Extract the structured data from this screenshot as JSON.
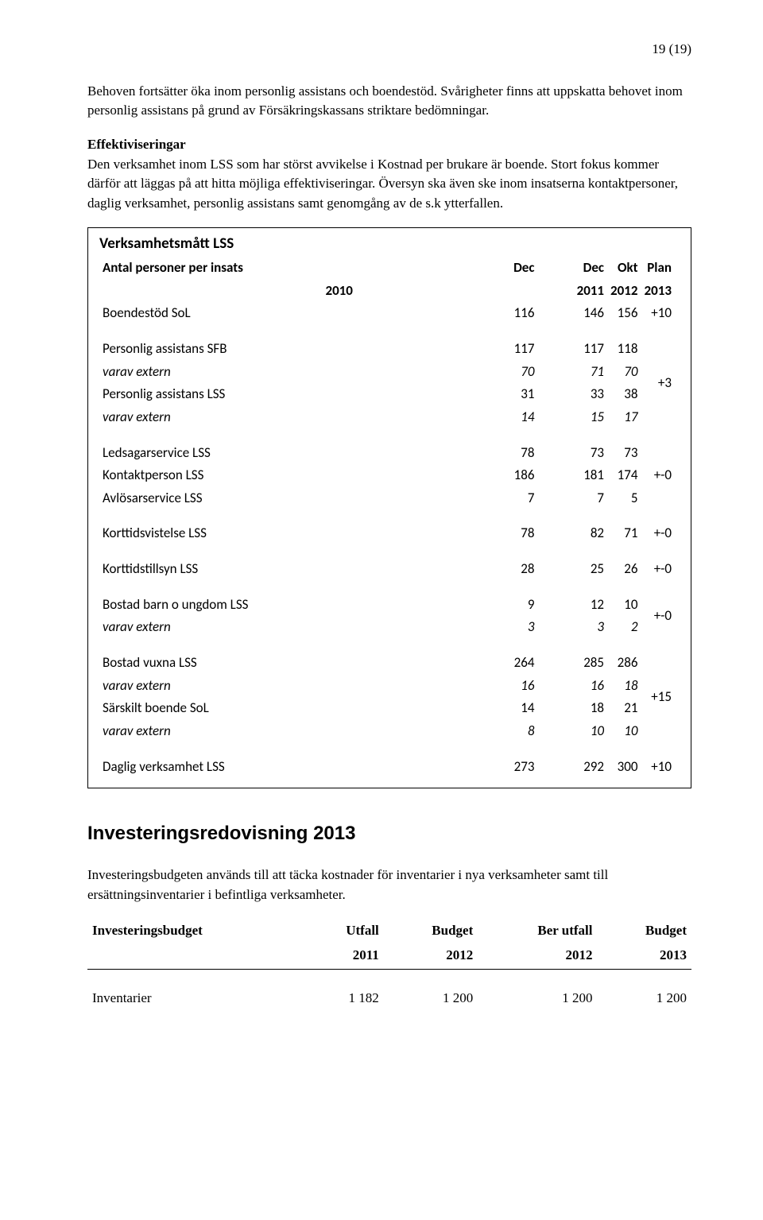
{
  "pageNumber": "19 (19)",
  "intro": {
    "p1": "Behoven fortsätter öka inom personlig assistans och boendestöd. Svårigheter finns att uppskatta behovet inom personlig assistans på grund av Försäkringskassans striktare bedömningar."
  },
  "eff": {
    "heading": "Effektiviseringar",
    "body": "Den verksamhet inom LSS som har störst avvikelse i Kostnad per brukare är boende. Stort fokus kommer därför att läggas på att hitta möjliga effektiviseringar. Översyn ska även ske inom insatserna kontaktpersoner, daglig verksamhet, personlig assistans samt genomgång av de s.k ytterfallen."
  },
  "table": {
    "title": "Verksamhetsmått LSS",
    "subtitle": "Antal personer per insats",
    "headers": {
      "c1": "Dec",
      "c1b": "2010",
      "c2": "Dec",
      "c2b": "2011",
      "c3": "Okt",
      "c3b": "2012",
      "c4": "Plan",
      "c4b": "2013"
    },
    "r1": {
      "label": "Boendestöd SoL",
      "a": "116",
      "b": "146",
      "c": "156",
      "d": "+10"
    },
    "r2": {
      "label": "Personlig assistans SFB",
      "a": "117",
      "b": "117",
      "c": "118",
      "d": ""
    },
    "r3": {
      "label": "varav extern",
      "a": "70",
      "b": "71",
      "c": "70",
      "d": ""
    },
    "r4": {
      "label": "Personlig assistans LSS",
      "a": "31",
      "b": "33",
      "c": "38",
      "d": "+3"
    },
    "r5": {
      "label": "varav extern",
      "a": "14",
      "b": "15",
      "c": "17",
      "d": ""
    },
    "r6": {
      "label": "Ledsagarservice LSS",
      "a": "78",
      "b": "73",
      "c": "73",
      "d": ""
    },
    "r7": {
      "label": "Kontaktperson LSS",
      "a": "186",
      "b": "181",
      "c": "174",
      "d": "+-0"
    },
    "r8": {
      "label": "Avlösarservice LSS",
      "a": "7",
      "b": "7",
      "c": "5",
      "d": ""
    },
    "r9": {
      "label": "Korttidsvistelse LSS",
      "a": "78",
      "b": "82",
      "c": "71",
      "d": "+-0"
    },
    "r10": {
      "label": "Korttidstillsyn LSS",
      "a": "28",
      "b": "25",
      "c": "26",
      "d": "+-0"
    },
    "r11": {
      "label": "Bostad barn o ungdom LSS",
      "a": "9",
      "b": "12",
      "c": "10",
      "d": ""
    },
    "r12": {
      "label": "varav extern",
      "a": "3",
      "b": "3",
      "c": "2",
      "d": "+-0"
    },
    "r13": {
      "label": "Bostad vuxna LSS",
      "a": "264",
      "b": "285",
      "c": "286",
      "d": ""
    },
    "r14": {
      "label": "varav extern",
      "a": "16",
      "b": "16",
      "c": "18",
      "d": ""
    },
    "r15": {
      "label": "Särskilt boende SoL",
      "a": "14",
      "b": "18",
      "c": "21",
      "d": "+15"
    },
    "r16": {
      "label": "varav extern",
      "a": "8",
      "b": "10",
      "c": "10",
      "d": ""
    },
    "r17": {
      "label": "Daglig verksamhet LSS",
      "a": "273",
      "b": "292",
      "c": "300",
      "d": "+10"
    }
  },
  "invest": {
    "heading": "Investeringsredovisning 2013",
    "body": "Investeringsbudgeten används till att täcka kostnader för inventarier i nya verksamheter samt till ersättningsinventarier i befintliga verksamheter."
  },
  "budget": {
    "label": "Investeringsbudget",
    "h1a": "Utfall",
    "h1b": "2011",
    "h2a": "Budget",
    "h2b": "2012",
    "h3a": "Ber utfall",
    "h3b": "2012",
    "h4a": "Budget",
    "h4b": "2013",
    "row1": {
      "label": "Inventarier",
      "a": "1 182",
      "b": "1 200",
      "c": "1 200",
      "d": "1 200"
    }
  }
}
